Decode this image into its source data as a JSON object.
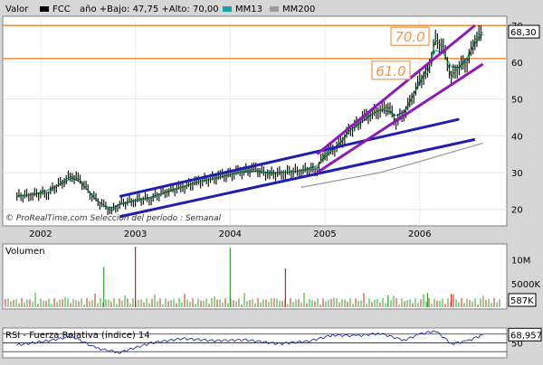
{
  "chart_data": [
    {
      "type": "line",
      "panel": "price",
      "title": "FCC",
      "legend": {
        "label_left": "Valor",
        "symbol": "FCC",
        "range_text": "año +Bajo: 47,75 +Alto: 70,00",
        "ma1": "MM13",
        "ma2": "MM200",
        "colors": {
          "FCC": "#000000",
          "MM13": "#17a3a3",
          "MM200": "#9c9c9c"
        }
      },
      "x_ticks": [
        "2002",
        "2003",
        "2004",
        "2005",
        "2006"
      ],
      "y_ticks": [
        20,
        30,
        40,
        50,
        60,
        70
      ],
      "ylim": [
        16,
        72
      ],
      "last_value_label": "68,30",
      "last_value": 68.3,
      "horizontal_levels": [
        {
          "value": 70.0,
          "label": "70.0",
          "color": "#f2964e"
        },
        {
          "value": 61.0,
          "label": "61.0",
          "color": "#f2964e"
        }
      ],
      "credit": "© ProRealTime.com  Selección del período : Semanal",
      "price_points": [
        [
          "2001-10",
          23.5
        ],
        [
          "2001-12",
          24
        ],
        [
          "2002-02",
          24.5
        ],
        [
          "2002-04",
          28
        ],
        [
          "2002-05",
          29
        ],
        [
          "2002-06",
          28
        ],
        [
          "2002-07",
          25
        ],
        [
          "2002-08",
          22.5
        ],
        [
          "2002-09",
          21
        ],
        [
          "2002-10",
          19.5
        ],
        [
          "2002-11",
          21.5
        ],
        [
          "2003-01",
          22.5
        ],
        [
          "2003-03",
          23
        ],
        [
          "2003-05",
          25
        ],
        [
          "2003-07",
          26
        ],
        [
          "2003-09",
          27.5
        ],
        [
          "2003-12",
          29
        ],
        [
          "2004-02",
          30
        ],
        [
          "2004-04",
          31
        ],
        [
          "2004-06",
          29.5
        ],
        [
          "2004-08",
          30
        ],
        [
          "2004-10",
          30.5
        ],
        [
          "2004-12",
          31
        ],
        [
          "2005-01",
          35
        ],
        [
          "2005-02",
          36
        ],
        [
          "2005-03",
          38
        ],
        [
          "2005-04",
          41
        ],
        [
          "2005-06",
          45
        ],
        [
          "2005-07",
          46
        ],
        [
          "2005-08",
          47
        ],
        [
          "2005-09",
          48
        ],
        [
          "2005-10",
          44
        ],
        [
          "2005-11",
          46
        ],
        [
          "2005-12",
          50
        ],
        [
          "2006-01",
          55
        ],
        [
          "2006-02",
          57
        ],
        [
          "2006-03",
          66
        ],
        [
          "2006-04",
          64
        ],
        [
          "2006-05",
          56
        ],
        [
          "2006-06",
          59
        ],
        [
          "2006-07",
          60
        ],
        [
          "2006-08",
          66
        ],
        [
          "2006-09",
          68.3
        ]
      ],
      "trendlines": [
        {
          "color": "#1f1fb0",
          "from": [
            "2002-11",
            23.5
          ],
          "to": [
            "2006-06",
            44.5
          ]
        },
        {
          "color": "#1f1fb0",
          "from": [
            "2002-11",
            18
          ],
          "to": [
            "2006-08",
            39
          ]
        },
        {
          "color": "#8c1ab5",
          "from": [
            "2004-12",
            35
          ],
          "to": [
            "2006-08",
            70
          ]
        },
        {
          "color": "#8c1ab5",
          "from": [
            "2004-12",
            30
          ],
          "to": [
            "2006-09",
            59.5
          ]
        }
      ],
      "mm200_points": [
        [
          "2004-10",
          26
        ],
        [
          "2005-03",
          28
        ],
        [
          "2005-08",
          30
        ],
        [
          "2006-01",
          33
        ],
        [
          "2006-09",
          38
        ]
      ]
    },
    {
      "type": "bar",
      "panel": "volume",
      "title": "Volumen",
      "y_ticks": [
        {
          "label": "10M",
          "value": 10000000
        },
        {
          "label": "5000K",
          "value": 5000000
        }
      ],
      "ylim": [
        0,
        13000000
      ],
      "last_value_label": "587K",
      "bars": [
        [
          "2002-09",
          8500000,
          "#2fa02f"
        ],
        [
          "2003-01",
          12800000,
          "#d02020"
        ],
        [
          "2004-01",
          12600000,
          "#2fa02f"
        ],
        [
          "2004-08",
          8200000,
          "#d02020"
        ],
        [
          "2005-09",
          2500000,
          "#2fa02f"
        ],
        [
          "2006-02",
          3000000,
          "#2fa02f"
        ],
        [
          "2006-05",
          2800000,
          "#d02020"
        ]
      ]
    },
    {
      "type": "line",
      "panel": "rsi",
      "title": "RSI - Fuerza Relativa (índice) 14",
      "y_ticks": [
        50
      ],
      "ylim": [
        20,
        80
      ],
      "last_value_label": "68,957",
      "last_value": 68.957,
      "rsi_points": [
        [
          "2001-10",
          45
        ],
        [
          "2002-02",
          55
        ],
        [
          "2002-05",
          65
        ],
        [
          "2002-08",
          38
        ],
        [
          "2002-11",
          28
        ],
        [
          "2003-03",
          50
        ],
        [
          "2003-07",
          60
        ],
        [
          "2003-11",
          55
        ],
        [
          "2004-03",
          57
        ],
        [
          "2004-07",
          48
        ],
        [
          "2004-11",
          54
        ],
        [
          "2005-02",
          68
        ],
        [
          "2005-05",
          66
        ],
        [
          "2005-08",
          72
        ],
        [
          "2005-11",
          56
        ],
        [
          "2006-01",
          70
        ],
        [
          "2006-03",
          78
        ],
        [
          "2006-05",
          48
        ],
        [
          "2006-07",
          54
        ],
        [
          "2006-09",
          68.957
        ]
      ]
    }
  ]
}
